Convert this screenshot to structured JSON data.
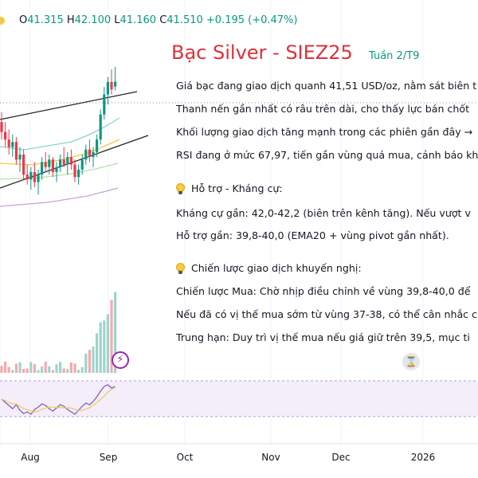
{
  "ohlc": {
    "o_label": "O",
    "o": "41.315",
    "h_label": "H",
    "h": "42.100",
    "l_label": "L",
    "l": "41.160",
    "c_label": "C",
    "c": "41.510",
    "change": "+0.195 (+0.47%)"
  },
  "annotation": {
    "title": "Bạc Silver - SIEZ25",
    "subtitle": "Tuần 2/T9",
    "lines": [
      "Giá bạc đang giao dịch quanh 41,51 USD/oz, nằm sát biên t",
      "Thanh nến gần nhất có râu trên dài, cho thấy lực bán chốt",
      "Khối lượng giao dịch tăng mạnh trong các phiên gần đây →",
      "RSI đang ở mức 67,97, tiến gần vùng quá mua, cảnh báo kh"
    ],
    "section1_title": "Hỗ trợ - Kháng cự:",
    "section1_lines": [
      "Kháng cự gần: 42,0-42,2 (biên trên kênh tăng). Nếu vượt v",
      "Hỗ trợ gần: 39,8-40,0 (EMA20 + vùng pivot gần nhất)."
    ],
    "section2_title": "Chiến lược giao dịch khuyến nghị:",
    "section2_lines": [
      "Chiến lược Mua: Chờ nhịp điều chỉnh về vùng 39,8-40,0 để",
      "Nếu đã có vị thế mua sớm từ vùng 37-38, có thể cân nhắc c",
      "Trung hạn: Duy trì vị thế mua nếu giá giữ trên 39,5, mục ti"
    ]
  },
  "colors": {
    "up": "#089981",
    "down": "#f23645",
    "title": "#e0303a",
    "ema_fast": "#8fd3c9",
    "ema_mid": "#f2c94c",
    "ema_slow": "#b5e0a8",
    "ema_long": "#c7a4d6",
    "rsi": "#7e57c2",
    "rsi_ma": "#f2c94c",
    "volume_up": "#9ed4cc",
    "volume_down": "#f7a9ae"
  },
  "icons": {
    "bolt": "lightning-bolt-icon",
    "hourglass": "hourglass-icon",
    "bulb": "lightbulb-icon"
  },
  "chart_data": {
    "type": "candlestick",
    "x_ticks": [
      "Aug",
      "Sep",
      "Oct",
      "Nov",
      "Dec",
      "2026"
    ],
    "y_range": [
      36.5,
      43.5
    ],
    "candles": [
      {
        "o": 39.9,
        "h": 40.3,
        "l": 39.2,
        "c": 39.5
      },
      {
        "o": 39.5,
        "h": 39.9,
        "l": 38.9,
        "c": 39.2
      },
      {
        "o": 39.2,
        "h": 39.6,
        "l": 38.6,
        "c": 38.9
      },
      {
        "o": 38.9,
        "h": 39.4,
        "l": 38.5,
        "c": 39.1
      },
      {
        "o": 39.1,
        "h": 39.3,
        "l": 38.2,
        "c": 38.4
      },
      {
        "o": 38.4,
        "h": 38.9,
        "l": 37.9,
        "c": 38.6
      },
      {
        "o": 38.6,
        "h": 38.8,
        "l": 37.6,
        "c": 37.8
      },
      {
        "o": 37.8,
        "h": 38.2,
        "l": 37.4,
        "c": 37.6
      },
      {
        "o": 37.6,
        "h": 38.1,
        "l": 37.2,
        "c": 37.9
      },
      {
        "o": 37.9,
        "h": 38.3,
        "l": 37.3,
        "c": 37.5
      },
      {
        "o": 37.5,
        "h": 38.0,
        "l": 37.0,
        "c": 37.8
      },
      {
        "o": 37.8,
        "h": 38.5,
        "l": 37.6,
        "c": 38.3
      },
      {
        "o": 38.3,
        "h": 38.7,
        "l": 37.9,
        "c": 38.1
      },
      {
        "o": 38.1,
        "h": 38.6,
        "l": 37.8,
        "c": 38.4
      },
      {
        "o": 38.4,
        "h": 38.5,
        "l": 37.7,
        "c": 37.9
      },
      {
        "o": 37.9,
        "h": 38.3,
        "l": 37.5,
        "c": 38.1
      },
      {
        "o": 38.1,
        "h": 38.6,
        "l": 37.9,
        "c": 38.4
      },
      {
        "o": 38.4,
        "h": 38.9,
        "l": 38.1,
        "c": 38.2
      },
      {
        "o": 38.2,
        "h": 38.7,
        "l": 37.8,
        "c": 38.5
      },
      {
        "o": 38.5,
        "h": 38.8,
        "l": 38.0,
        "c": 38.2
      },
      {
        "o": 38.2,
        "h": 38.4,
        "l": 37.5,
        "c": 37.7
      },
      {
        "o": 37.7,
        "h": 38.2,
        "l": 37.4,
        "c": 38.0
      },
      {
        "o": 38.0,
        "h": 38.6,
        "l": 37.8,
        "c": 38.4
      },
      {
        "o": 38.4,
        "h": 39.0,
        "l": 38.2,
        "c": 38.8
      },
      {
        "o": 38.8,
        "h": 39.2,
        "l": 38.3,
        "c": 38.5
      },
      {
        "o": 38.5,
        "h": 38.9,
        "l": 38.1,
        "c": 38.7
      },
      {
        "o": 38.7,
        "h": 39.4,
        "l": 38.5,
        "c": 39.2
      },
      {
        "o": 39.2,
        "h": 40.4,
        "l": 39.0,
        "c": 40.2
      },
      {
        "o": 40.2,
        "h": 41.3,
        "l": 40.0,
        "c": 41.0
      },
      {
        "o": 41.0,
        "h": 41.7,
        "l": 40.6,
        "c": 41.5
      },
      {
        "o": 41.5,
        "h": 42.0,
        "l": 41.0,
        "c": 41.2
      },
      {
        "o": 41.315,
        "h": 42.1,
        "l": 41.16,
        "c": 41.51
      }
    ]
  }
}
